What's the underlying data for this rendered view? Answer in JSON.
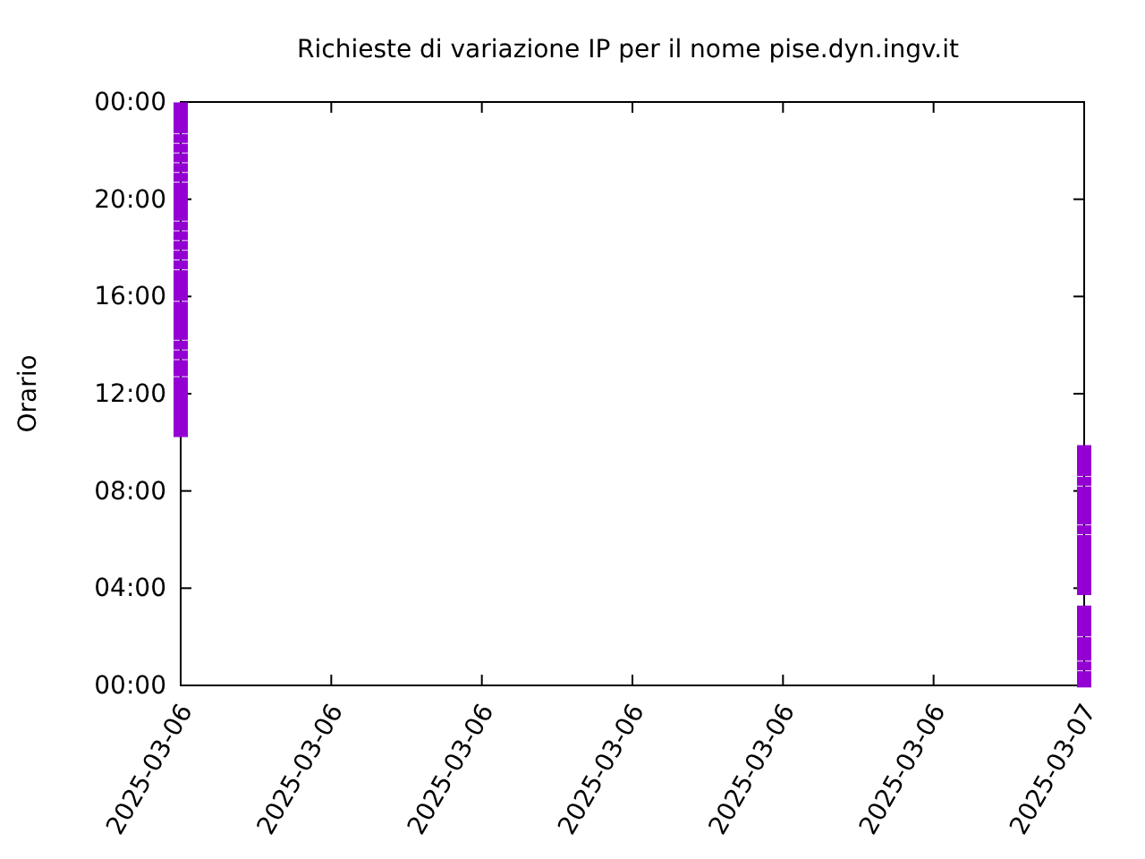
{
  "chart_data": {
    "type": "scatter",
    "title": "Richieste di variazione IP per il nome pise.dyn.ingv.it",
    "ylabel": "Orario",
    "xlim": [
      "2025-03-06T00:00",
      "2025-03-07T00:00"
    ],
    "xticks": [
      {
        "value": "2025-03-06T00:00",
        "label": "2025-03-06"
      },
      {
        "value": "2025-03-06T04:00",
        "label": "2025-03-06"
      },
      {
        "value": "2025-03-06T08:00",
        "label": "2025-03-06"
      },
      {
        "value": "2025-03-06T12:00",
        "label": "2025-03-06"
      },
      {
        "value": "2025-03-06T16:00",
        "label": "2025-03-06"
      },
      {
        "value": "2025-03-06T20:00",
        "label": "2025-03-06"
      },
      {
        "value": "2025-03-07T00:00",
        "label": "2025-03-07"
      }
    ],
    "ylim": [
      0,
      24
    ],
    "yticks": [
      {
        "value": 0,
        "label": "00:00"
      },
      {
        "value": 4,
        "label": "04:00"
      },
      {
        "value": 8,
        "label": "08:00"
      },
      {
        "value": 12,
        "label": "12:00"
      },
      {
        "value": 16,
        "label": "16:00"
      },
      {
        "value": 20,
        "label": "20:00"
      },
      {
        "value": 24,
        "label": "00:00"
      }
    ],
    "marker": "square",
    "grid": false,
    "series": [
      {
        "color": "#9400d3",
        "x": [
          "2025-03-06",
          "2025-03-06",
          "2025-03-06",
          "2025-03-06",
          "2025-03-06",
          "2025-03-06",
          "2025-03-06",
          "2025-03-06",
          "2025-03-06",
          "2025-03-06",
          "2025-03-06",
          "2025-03-06",
          "2025-03-06",
          "2025-03-06",
          "2025-03-06",
          "2025-03-06",
          "2025-03-06",
          "2025-03-06",
          "2025-03-06",
          "2025-03-06",
          "2025-03-06",
          "2025-03-06",
          "2025-03-06",
          "2025-03-06",
          "2025-03-06",
          "2025-03-06",
          "2025-03-06",
          "2025-03-06",
          "2025-03-06",
          "2025-03-06",
          "2025-03-06",
          "2025-03-06",
          "2025-03-06",
          "2025-03-06",
          "2025-03-06",
          "2025-03-06",
          "2025-03-06",
          "2025-03-06",
          "2025-03-06",
          "2025-03-06",
          "2025-03-07",
          "2025-03-07",
          "2025-03-07",
          "2025-03-07",
          "2025-03-07",
          "2025-03-07",
          "2025-03-07",
          "2025-03-07",
          "2025-03-07",
          "2025-03-07",
          "2025-03-07",
          "2025-03-07",
          "2025-03-07",
          "2025-03-07",
          "2025-03-07",
          "2025-03-07",
          "2025-03-07",
          "2025-03-07",
          "2025-03-07",
          "2025-03-07",
          "2025-03-07",
          "2025-03-07",
          "2025-03-07",
          "2025-03-07",
          "2025-03-07",
          "2025-03-07",
          "2025-03-07",
          "2025-03-07",
          "2025-03-07"
        ],
        "values": [
          10.4,
          10.7,
          11.0,
          11.3,
          11.6,
          11.9,
          12.2,
          12.5,
          12.9,
          13.2,
          13.6,
          14.0,
          14.4,
          14.7,
          15.0,
          15.3,
          15.6,
          16.0,
          16.3,
          16.6,
          16.9,
          17.3,
          17.7,
          18.1,
          18.5,
          18.9,
          19.3,
          19.6,
          19.9,
          20.2,
          20.5,
          20.9,
          21.3,
          21.7,
          22.1,
          22.5,
          22.9,
          23.2,
          23.5,
          23.8,
          0.1,
          0.4,
          0.8,
          1.2,
          1.5,
          1.8,
          2.2,
          2.5,
          2.8,
          3.1,
          3.9,
          4.2,
          4.5,
          4.8,
          5.1,
          5.4,
          5.7,
          6.0,
          6.4,
          6.8,
          7.1,
          7.4,
          7.7,
          8.0,
          8.4,
          8.8,
          9.1,
          9.4,
          9.7
        ]
      }
    ]
  }
}
